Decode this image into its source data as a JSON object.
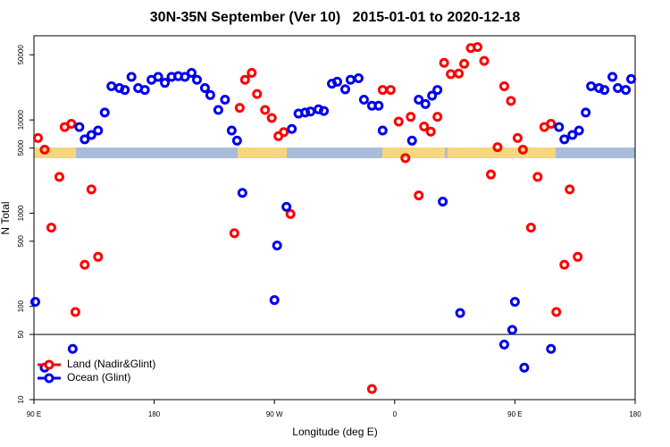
{
  "chart_data": {
    "type": "scatter",
    "title": "30N-35N September (Ver 10)   2015-01-01 to 2020-12-18",
    "x_label": "Longitude (deg E)",
    "y_label": "N Total",
    "xlim": [
      90,
      540
    ],
    "xticks": [
      {
        "value": 90,
        "label": "90 E"
      },
      180,
      {
        "value": 270,
        "label": "90 W"
      },
      {
        "value": 360,
        "label": "0"
      },
      {
        "value": 450,
        "label": "90 E"
      },
      {
        "value": 540,
        "label": "180"
      }
    ],
    "ylim": [
      10,
      80000
    ],
    "y_scale": "log",
    "yticks": [
      10,
      50,
      100,
      500,
      1000,
      5000,
      10000,
      50000
    ],
    "reference_line": 50,
    "legend": "lower left",
    "series": [
      {
        "name": "Land (Nadir&Glint)",
        "color": "#ff0000",
        "x": [
          93,
          98,
          109,
          103,
          128,
          121,
          113,
          118,
          133,
          138,
          240,
          244,
          248,
          253,
          257,
          263,
          268,
          273,
          277,
          282,
          343,
          351,
          357,
          363,
          368,
          372,
          378,
          382,
          387,
          392,
          397,
          402,
          408,
          412,
          417,
          422,
          427,
          432,
          437,
          442,
          447,
          452,
          456,
          462,
          467,
          472,
          477,
          481,
          487,
          491,
          497
        ],
        "values": [
          6400,
          4800,
          2450,
          700,
          280,
          87,
          8400,
          9100,
          1800,
          340,
          610,
          13500,
          27000,
          32000,
          19000,
          12800,
          10500,
          6700,
          7400,
          980,
          13,
          21000,
          21000,
          9600,
          3900,
          10800,
          1550,
          8500,
          7500,
          10800,
          41000,
          31000,
          31500,
          40000,
          59000,
          60500,
          43000,
          2600,
          5100,
          23000,
          16000,
          6400,
          4800,
          700,
          2450,
          8400,
          9100,
          87,
          280,
          1800,
          340
        ]
      },
      {
        "name": "Ocean (Glint)",
        "color": "#0000ee",
        "x": [
          91,
          98,
          119,
          124,
          128,
          133,
          138,
          143,
          148,
          154,
          158,
          163,
          168,
          173,
          178,
          183,
          188,
          193,
          198,
          203,
          208,
          212,
          218,
          222,
          228,
          233,
          238,
          242,
          246,
          270,
          272,
          279,
          283,
          288,
          293,
          297,
          303,
          307,
          313,
          317,
          323,
          327,
          333,
          337,
          343,
          348,
          351,
          373,
          378,
          383,
          388,
          392,
          396,
          409,
          442,
          448,
          450,
          457,
          477,
          483,
          487,
          493,
          498,
          503,
          507,
          513,
          517,
          523,
          527,
          533,
          537
        ],
        "values": [
          112,
          22,
          35,
          8400,
          6200,
          6900,
          7700,
          12000,
          23000,
          22000,
          21000,
          29000,
          22000,
          21000,
          27000,
          29000,
          25000,
          29000,
          29500,
          29000,
          32000,
          27000,
          22000,
          18500,
          12800,
          16500,
          7700,
          6000,
          1650,
          117,
          450,
          1170,
          8000,
          11700,
          12000,
          12300,
          13000,
          12500,
          24500,
          25700,
          21300,
          27000,
          28000,
          16500,
          14200,
          14200,
          7700,
          6000,
          16500,
          14800,
          18200,
          21000,
          1330,
          85,
          39,
          56,
          112,
          22,
          35,
          8400,
          6200,
          6900,
          7700,
          12000,
          23000,
          22000,
          21000,
          29000,
          22000,
          21000,
          27500
        ]
      }
    ]
  }
}
